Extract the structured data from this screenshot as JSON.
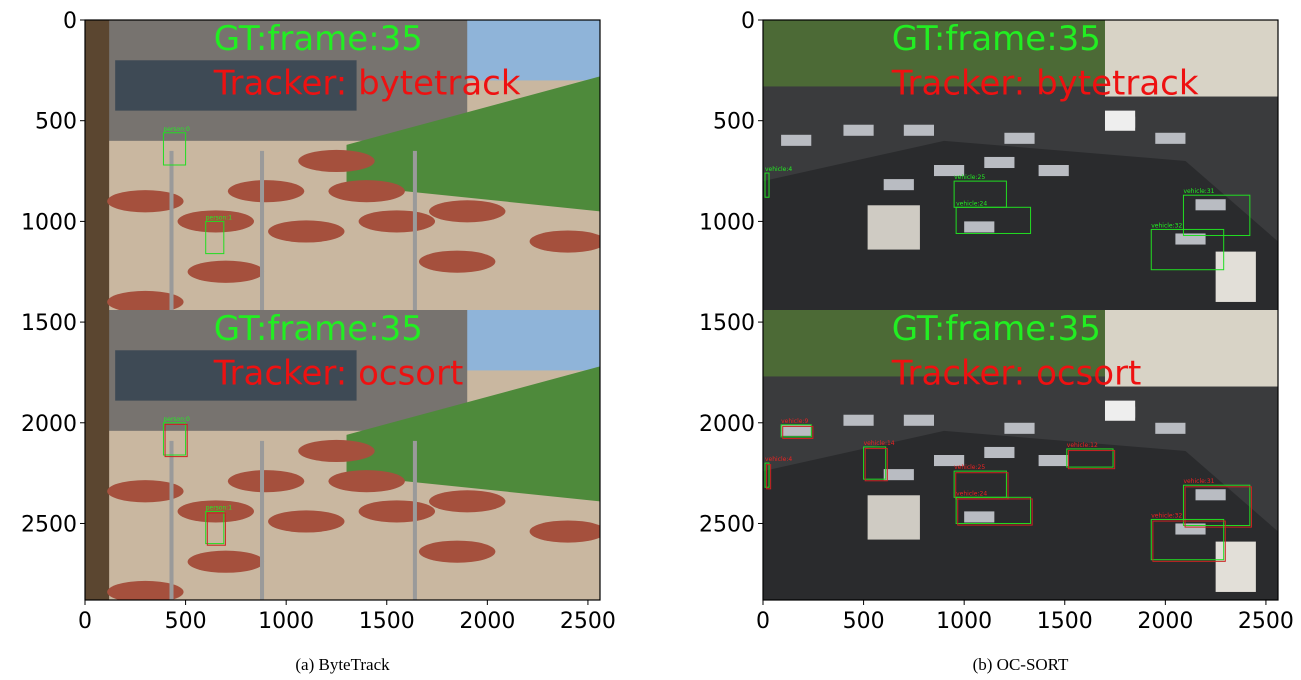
{
  "panels": [
    {
      "caption": "(a) ByteTrack",
      "xlim": [
        0,
        2560
      ],
      "ylim": [
        0,
        2880
      ],
      "xticks": [
        0,
        500,
        1000,
        1500,
        2000,
        2500
      ],
      "yticks": [
        0,
        500,
        1000,
        1500,
        2000,
        2500
      ],
      "frames": [
        {
          "gt": "GT:frame:35",
          "tracker": "Tracker: bytetrack",
          "labels": [
            "person:0",
            "person:1"
          ]
        },
        {
          "gt": "GT:frame:35",
          "tracker": "Tracker: ocsort",
          "labels": [
            "person:0",
            "person:1"
          ]
        }
      ]
    },
    {
      "caption": "(b) OC-SORT",
      "xlim": [
        0,
        2560
      ],
      "ylim": [
        0,
        2880
      ],
      "xticks": [
        0,
        500,
        1000,
        1500,
        2000,
        2500
      ],
      "yticks": [
        0,
        500,
        1000,
        1500,
        2000,
        2500
      ],
      "frames": [
        {
          "gt": "GT:frame:35",
          "tracker": "Tracker: bytetrack",
          "labels": [
            "vehicle:4",
            "vehicle:25",
            "vehicle:24",
            "vehicle:31",
            "vehicle:32"
          ]
        },
        {
          "gt": "GT:frame:35",
          "tracker": "Tracker: ocsort",
          "labels": [
            "vehicle:4",
            "vehicle:25",
            "vehicle:24",
            "vehicle:31",
            "vehicle:32",
            "vehicle:9",
            "vehicle:14",
            "vehicle:12"
          ]
        }
      ]
    }
  ]
}
